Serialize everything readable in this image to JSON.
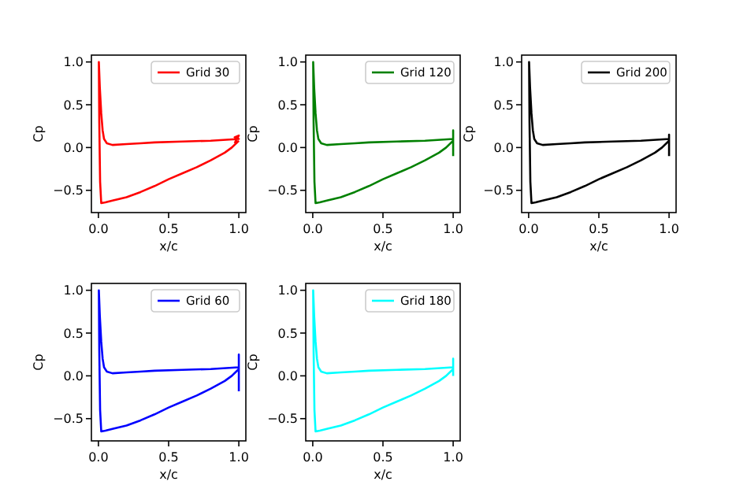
{
  "chart_data": [
    {
      "type": "line",
      "xlabel": "x/c",
      "ylabel": "Cp",
      "xlim": [
        -0.05,
        1.05
      ],
      "ylim": [
        -0.76,
        1.08
      ],
      "xticks": [
        {
          "value": 0,
          "label": "0.0"
        },
        {
          "value": 0.5,
          "label": "0.5"
        },
        {
          "value": 1,
          "label": "1.0"
        }
      ],
      "yticks": [
        {
          "value": -0.5,
          "label": "−0.5"
        },
        {
          "value": 0,
          "label": "0.0"
        },
        {
          "value": 0.5,
          "label": "0.5"
        },
        {
          "value": 1,
          "label": "1.0"
        }
      ],
      "legend": "top right",
      "series": [
        {
          "name": "Grid 30",
          "color": "#ff0000",
          "x": [
            0.97,
            1.0,
            0.97,
            1.0,
            0.8,
            0.6,
            0.4,
            0.3,
            0.2,
            0.1,
            0.06,
            0.04,
            0.03,
            0.02,
            0.01,
            0.003,
            0.006,
            0.012,
            0.02,
            0.05,
            0.1,
            0.2,
            0.3,
            0.4,
            0.5,
            0.6,
            0.7,
            0.8,
            0.9,
            0.95,
            1.0
          ],
          "values": [
            0.05,
            0.14,
            0.12,
            0.1,
            0.08,
            0.07,
            0.06,
            0.05,
            0.04,
            0.03,
            0.05,
            0.1,
            0.2,
            0.4,
            0.7,
            1.0,
            0.3,
            -0.4,
            -0.65,
            -0.64,
            -0.62,
            -0.58,
            -0.52,
            -0.45,
            -0.37,
            -0.3,
            -0.23,
            -0.15,
            -0.06,
            0.0,
            0.08
          ]
        }
      ]
    },
    {
      "type": "line",
      "xlabel": "x/c",
      "ylabel": "Cp",
      "xlim": [
        -0.05,
        1.05
      ],
      "ylim": [
        -0.76,
        1.08
      ],
      "xticks": [
        {
          "value": 0,
          "label": "0.0"
        },
        {
          "value": 0.5,
          "label": "0.5"
        },
        {
          "value": 1,
          "label": "1.0"
        }
      ],
      "yticks": [
        {
          "value": -0.5,
          "label": "−0.5"
        },
        {
          "value": 0,
          "label": "0.0"
        },
        {
          "value": 0.5,
          "label": "0.5"
        },
        {
          "value": 1,
          "label": "1.0"
        }
      ],
      "legend": "top right",
      "series": [
        {
          "name": "Grid 120",
          "color": "#008000",
          "x": [
            1.0,
            1.0,
            1.0,
            0.8,
            0.6,
            0.4,
            0.3,
            0.2,
            0.1,
            0.06,
            0.04,
            0.03,
            0.02,
            0.01,
            0.003,
            0.006,
            0.012,
            0.02,
            0.05,
            0.1,
            0.2,
            0.3,
            0.4,
            0.5,
            0.6,
            0.7,
            0.8,
            0.9,
            0.95,
            1.0
          ],
          "values": [
            -0.1,
            0.2,
            0.1,
            0.08,
            0.07,
            0.06,
            0.05,
            0.04,
            0.03,
            0.05,
            0.1,
            0.2,
            0.4,
            0.7,
            1.0,
            0.3,
            -0.4,
            -0.65,
            -0.64,
            -0.62,
            -0.58,
            -0.52,
            -0.45,
            -0.37,
            -0.3,
            -0.23,
            -0.15,
            -0.06,
            0.0,
            0.08
          ]
        }
      ]
    },
    {
      "type": "line",
      "xlabel": "x/c",
      "ylabel": "Cp",
      "xlim": [
        -0.05,
        1.05
      ],
      "ylim": [
        -0.76,
        1.08
      ],
      "xticks": [
        {
          "value": 0,
          "label": "0.0"
        },
        {
          "value": 0.5,
          "label": "0.5"
        },
        {
          "value": 1,
          "label": "1.0"
        }
      ],
      "yticks": [
        {
          "value": -0.5,
          "label": "−0.5"
        },
        {
          "value": 0,
          "label": "0.0"
        },
        {
          "value": 0.5,
          "label": "0.5"
        },
        {
          "value": 1,
          "label": "1.0"
        }
      ],
      "legend": "top right",
      "series": [
        {
          "name": "Grid 200",
          "color": "#000000",
          "x": [
            1.0,
            1.0,
            1.0,
            0.8,
            0.6,
            0.4,
            0.3,
            0.2,
            0.1,
            0.06,
            0.04,
            0.03,
            0.02,
            0.01,
            0.003,
            0.006,
            0.012,
            0.02,
            0.05,
            0.1,
            0.2,
            0.3,
            0.4,
            0.5,
            0.6,
            0.7,
            0.8,
            0.9,
            0.95,
            1.0
          ],
          "values": [
            -0.1,
            0.15,
            0.1,
            0.08,
            0.07,
            0.06,
            0.05,
            0.04,
            0.03,
            0.05,
            0.1,
            0.2,
            0.4,
            0.7,
            1.0,
            0.3,
            -0.4,
            -0.65,
            -0.64,
            -0.62,
            -0.58,
            -0.52,
            -0.45,
            -0.37,
            -0.3,
            -0.23,
            -0.15,
            -0.06,
            0.0,
            0.08
          ]
        }
      ]
    },
    {
      "type": "line",
      "xlabel": "x/c",
      "ylabel": "Cp",
      "xlim": [
        -0.05,
        1.05
      ],
      "ylim": [
        -0.76,
        1.08
      ],
      "xticks": [
        {
          "value": 0,
          "label": "0.0"
        },
        {
          "value": 0.5,
          "label": "0.5"
        },
        {
          "value": 1,
          "label": "1.0"
        }
      ],
      "yticks": [
        {
          "value": -0.5,
          "label": "−0.5"
        },
        {
          "value": 0,
          "label": "0.0"
        },
        {
          "value": 0.5,
          "label": "0.5"
        },
        {
          "value": 1,
          "label": "1.0"
        }
      ],
      "legend": "top right",
      "series": [
        {
          "name": "Grid 60",
          "color": "#0000ff",
          "x": [
            1.0,
            1.0,
            1.0,
            0.8,
            0.6,
            0.4,
            0.3,
            0.2,
            0.1,
            0.06,
            0.04,
            0.03,
            0.02,
            0.01,
            0.003,
            0.006,
            0.012,
            0.02,
            0.05,
            0.1,
            0.2,
            0.3,
            0.4,
            0.5,
            0.6,
            0.7,
            0.8,
            0.9,
            0.95,
            1.0
          ],
          "values": [
            -0.18,
            0.25,
            0.1,
            0.08,
            0.07,
            0.06,
            0.05,
            0.04,
            0.03,
            0.05,
            0.1,
            0.2,
            0.4,
            0.7,
            1.0,
            0.3,
            -0.4,
            -0.65,
            -0.64,
            -0.62,
            -0.58,
            -0.52,
            -0.45,
            -0.37,
            -0.3,
            -0.23,
            -0.15,
            -0.06,
            0.0,
            0.08
          ]
        }
      ]
    },
    {
      "type": "line",
      "xlabel": "x/c",
      "ylabel": "Cp",
      "xlim": [
        -0.05,
        1.05
      ],
      "ylim": [
        -0.76,
        1.08
      ],
      "xticks": [
        {
          "value": 0,
          "label": "0.0"
        },
        {
          "value": 0.5,
          "label": "0.5"
        },
        {
          "value": 1,
          "label": "1.0"
        }
      ],
      "yticks": [
        {
          "value": -0.5,
          "label": "−0.5"
        },
        {
          "value": 0,
          "label": "0.0"
        },
        {
          "value": 0.5,
          "label": "0.5"
        },
        {
          "value": 1,
          "label": "1.0"
        }
      ],
      "legend": "top right",
      "series": [
        {
          "name": "Grid 180",
          "color": "#00ffff",
          "x": [
            1.0,
            1.0,
            1.0,
            0.8,
            0.6,
            0.4,
            0.3,
            0.2,
            0.1,
            0.06,
            0.04,
            0.03,
            0.02,
            0.01,
            0.003,
            0.006,
            0.012,
            0.02,
            0.05,
            0.1,
            0.2,
            0.3,
            0.4,
            0.5,
            0.6,
            0.7,
            0.8,
            0.9,
            0.95,
            1.0
          ],
          "values": [
            0.0,
            0.2,
            0.1,
            0.08,
            0.07,
            0.06,
            0.05,
            0.04,
            0.03,
            0.05,
            0.1,
            0.2,
            0.4,
            0.7,
            1.0,
            0.3,
            -0.4,
            -0.65,
            -0.64,
            -0.62,
            -0.58,
            -0.52,
            -0.45,
            -0.37,
            -0.3,
            -0.23,
            -0.15,
            -0.06,
            0.0,
            0.08
          ]
        }
      ]
    }
  ]
}
